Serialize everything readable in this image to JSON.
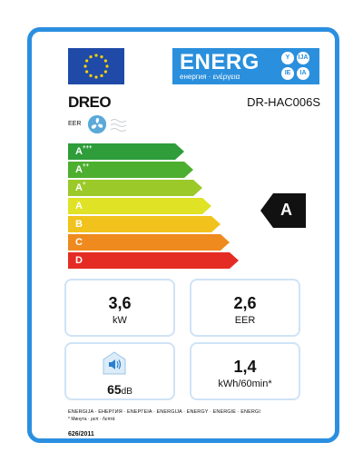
{
  "colors": {
    "frame": "#2b8fe0",
    "energy_banner": "#2a8fdc",
    "eu_blue": "#1f4aa8",
    "eu_star": "#ffd200",
    "class_colors": [
      "#2e9d3a",
      "#4caf2f",
      "#9bc92a",
      "#e0e226",
      "#f1c21b",
      "#ef8a1e",
      "#e52c24"
    ]
  },
  "icons": {
    "flag": "eu-flag-icon",
    "fan": "fan-icon",
    "breeze": "air-flow-icon",
    "sound": "speaker-icon"
  },
  "header": {
    "energy_word": "ENERG",
    "energy_sub": "енергия · ενέργεια",
    "lang_codes": [
      "Y",
      "IJA",
      "IE",
      "IA"
    ]
  },
  "brand": "DREO",
  "model": "DR-HAC006S",
  "eer_label": "EER",
  "classes": [
    {
      "letter": "A",
      "plus": "+++"
    },
    {
      "letter": "A",
      "plus": "++"
    },
    {
      "letter": "A",
      "plus": "+"
    },
    {
      "letter": "A",
      "plus": ""
    },
    {
      "letter": "B",
      "plus": ""
    },
    {
      "letter": "C",
      "plus": ""
    },
    {
      "letter": "D",
      "plus": ""
    }
  ],
  "rating": "A",
  "panels": {
    "capacity": {
      "value": "3,6",
      "unit": "kW"
    },
    "eer": {
      "value": "2,6",
      "unit": "EER"
    },
    "sound": {
      "value": "65",
      "unit": "dB"
    },
    "consumption": {
      "value": "1,4",
      "unit": "kWh/60min*"
    }
  },
  "footer": {
    "languages": "ENERGIJA · ЕНЕРГИЯ · ΕΝΕΡΓΕΙΑ · ENERGIJA · ENERGY · ENERGIE · ENERGI",
    "note": "* Минута · ρεπ · Λεπτά",
    "regulation": "626/2011"
  }
}
